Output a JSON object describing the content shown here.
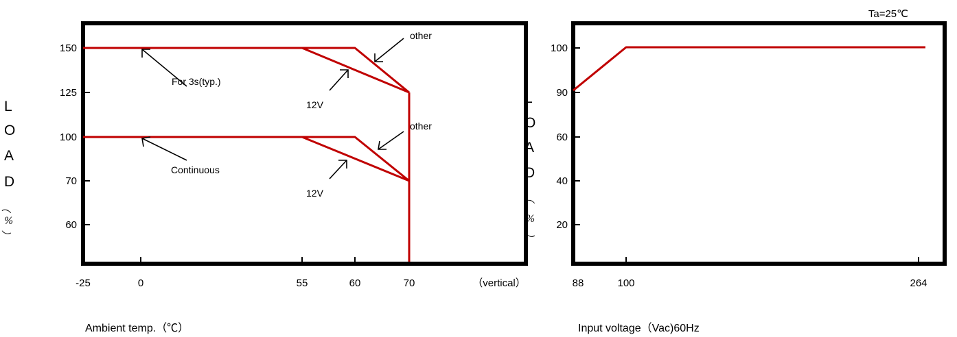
{
  "chart_data": [
    {
      "type": "line",
      "title": "",
      "xlabel": "Ambient temp.（℃）",
      "ylabel_chars": [
        "L",
        "O",
        "A",
        "D",
        "（",
        "%",
        "）"
      ],
      "x_ticks": [
        "-25",
        "0",
        "55",
        "60",
        "70",
        "（vertical）"
      ],
      "y_ticks": [
        "150",
        "125",
        "100",
        "70",
        "60"
      ],
      "series": [
        {
          "x": [
            "-25",
            "55",
            "70",
            "70"
          ],
          "y": [
            150,
            150,
            125,
            125
          ]
        },
        {
          "x": [
            "-25",
            "60",
            "70"
          ],
          "y": [
            150,
            150,
            125
          ]
        },
        {
          "x": [
            "-25",
            "55",
            "70"
          ],
          "y": [
            100,
            100,
            70
          ]
        },
        {
          "x": [
            "-25",
            "60",
            "70"
          ],
          "y": [
            100,
            100,
            70
          ]
        },
        {
          "x": [
            "70",
            "70"
          ],
          "y": [
            125,
            45
          ]
        }
      ],
      "annotations": [
        {
          "text": "For 3s(typ.)"
        },
        {
          "text": "other"
        },
        {
          "text": "12V"
        },
        {
          "text": "Continuous"
        },
        {
          "text": "other"
        },
        {
          "text": "12V"
        }
      ]
    },
    {
      "type": "line",
      "title": "Ta=25℃",
      "xlabel": "Input voltage（Vac)60Hz",
      "ylabel_chars": [
        "L",
        "O",
        "A",
        "D",
        "（",
        "%",
        "）"
      ],
      "x_ticks": [
        "88",
        "100",
        "264"
      ],
      "y_ticks": [
        "100",
        "90",
        "60",
        "40",
        "20"
      ],
      "series": [
        {
          "x": [
            88,
            100,
            264
          ],
          "y": [
            90,
            100,
            100
          ]
        }
      ],
      "annotations": []
    }
  ],
  "colors": {
    "curve": "#c00000",
    "frame": "#000000"
  }
}
